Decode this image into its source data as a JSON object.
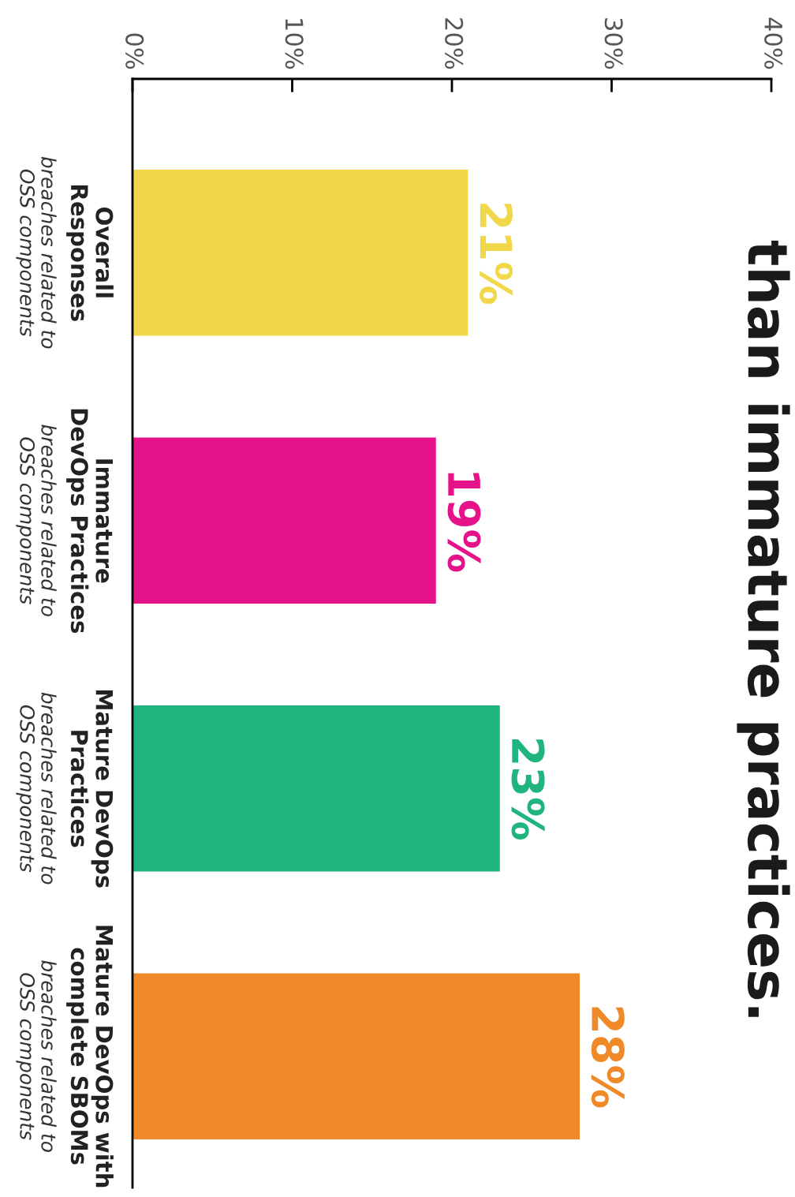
{
  "chart_data": {
    "type": "bar",
    "orientation": "horizontal",
    "title": "than immature practices.",
    "categories": [
      "Overall\nResponses",
      "Immature\nDevOps Practices",
      "Mature DevOps\nPractices",
      "Mature DevOps with\ncomplete SBOMs"
    ],
    "values": [
      21,
      19,
      23,
      28
    ],
    "colors": [
      "#f0d84a",
      "#e5128a",
      "#20b47f",
      "#f08a28"
    ],
    "value_labels": [
      "21%",
      "19%",
      "23%",
      "28%"
    ],
    "annotations": [
      "breaches related to\nOSS components",
      "breaches related to\nOSS components",
      "breaches related to\nOSS components",
      "breaches related to\nOSS components"
    ],
    "xlim": [
      0,
      40
    ],
    "xticks": [
      {
        "value": 0,
        "label": "0%"
      },
      {
        "value": 10,
        "label": "10%"
      },
      {
        "value": 20,
        "label": "20%"
      },
      {
        "value": 30,
        "label": "30%"
      },
      {
        "value": 40,
        "label": "40%"
      }
    ],
    "grid": false,
    "legend": false
  }
}
